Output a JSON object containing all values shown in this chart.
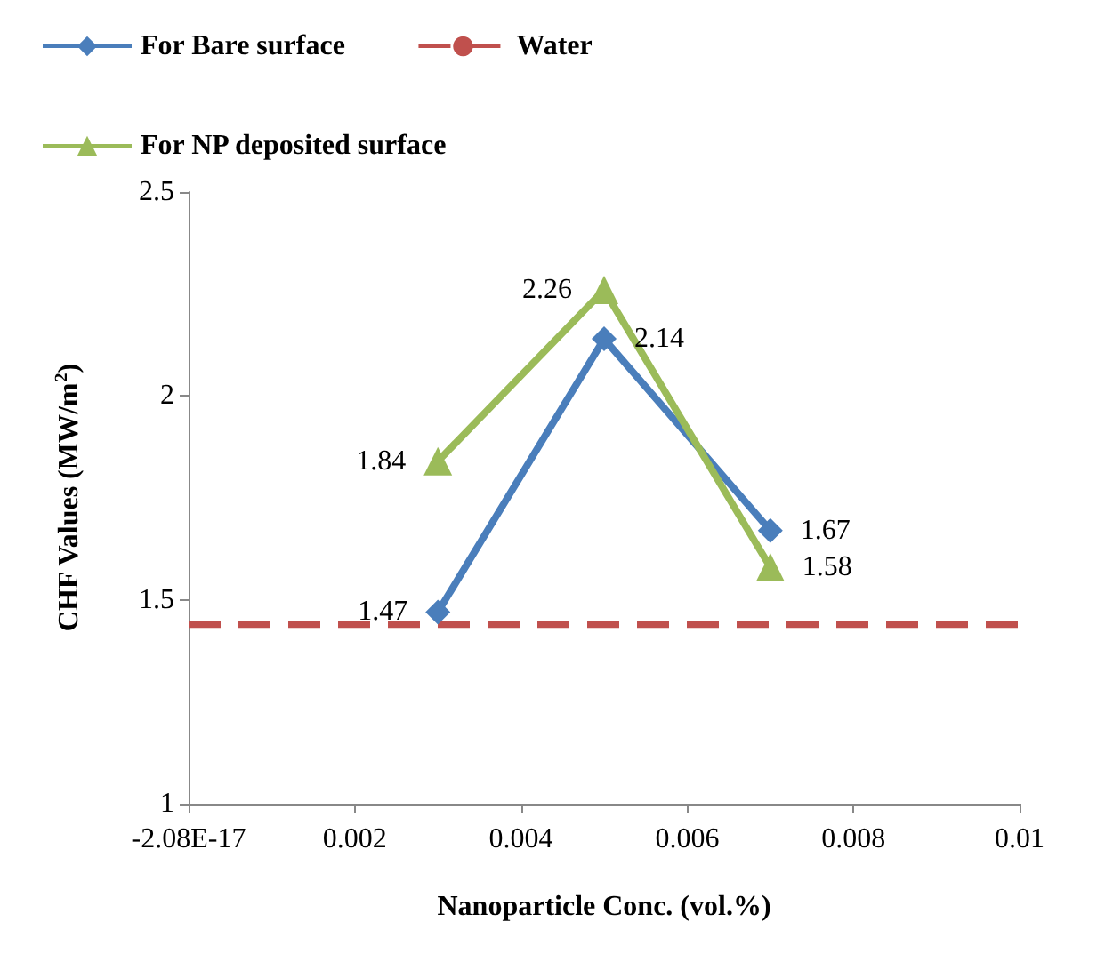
{
  "chart_data": {
    "type": "line",
    "xlabel": "Nanoparticle Conc. (vol.%)",
    "ylabel": "CHF Values (MW/m$^{2}$)",
    "xlim": [
      -2.08e-17,
      0.01
    ],
    "xticks": [
      {
        "value": -2.08e-17,
        "label": "-2.08E-17"
      },
      0.002,
      0.004,
      0.006,
      0.008,
      0.01
    ],
    "ylim": [
      1,
      2.5
    ],
    "yticks": [
      1,
      1.5,
      2,
      2.5
    ],
    "grid": false,
    "legend": "top",
    "series": [
      {
        "name": "For Bare surface",
        "color": "#4a7ebb",
        "marker": "diamond",
        "x": [
          0.003,
          0.005,
          0.007
        ],
        "values": [
          1.47,
          2.14,
          1.67
        ],
        "value_labels": [
          "1.47",
          "2.14",
          "1.67"
        ]
      },
      {
        "name": "Water",
        "color": "#c0504d",
        "marker": "none",
        "line_style": "dashed",
        "x": [
          0,
          0.01
        ],
        "values": [
          1.44,
          1.44
        ]
      },
      {
        "name": "For NP deposited surface",
        "color": "#9bbb59",
        "marker": "triangle",
        "x": [
          0.003,
          0.005,
          0.007
        ],
        "values": [
          1.84,
          2.26,
          1.58
        ],
        "value_labels": [
          "1.84",
          "2.26",
          "1.58"
        ]
      }
    ]
  }
}
